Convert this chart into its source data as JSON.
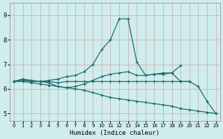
{
  "xlabel": "Humidex (Indice chaleur)",
  "background_color": "#d0ecec",
  "grid_color": "#b8d8d8",
  "line_color": "#1a6b6b",
  "xlim": [
    -0.5,
    23.5
  ],
  "ylim": [
    4.7,
    9.5
  ],
  "yticks": [
    5,
    6,
    7,
    8,
    9
  ],
  "xticks": [
    0,
    1,
    2,
    3,
    4,
    5,
    6,
    7,
    8,
    9,
    10,
    11,
    12,
    13,
    14,
    15,
    16,
    17,
    18,
    19,
    20,
    21,
    22,
    23
  ],
  "series": [
    {
      "x": [
        0,
        1,
        2,
        3,
        4,
        5,
        6,
        7,
        8,
        9,
        10,
        11,
        12,
        13,
        14,
        15,
        16,
        17,
        18,
        19,
        20
      ],
      "y": [
        6.3,
        6.4,
        6.3,
        6.3,
        6.3,
        6.25,
        6.3,
        6.3,
        6.3,
        6.3,
        6.3,
        6.3,
        6.3,
        6.3,
        6.3,
        6.3,
        6.3,
        6.3,
        6.3,
        6.3,
        6.3
      ]
    },
    {
      "x": [
        0,
        1,
        2,
        3,
        4,
        5,
        6,
        7,
        8,
        9,
        10,
        11,
        12,
        13,
        14,
        15,
        16,
        17,
        18,
        19
      ],
      "y": [
        6.3,
        6.4,
        6.35,
        6.3,
        6.35,
        6.4,
        6.5,
        6.55,
        6.7,
        7.0,
        7.6,
        8.0,
        8.85,
        8.85,
        7.1,
        6.55,
        6.6,
        6.65,
        6.65,
        6.95
      ]
    },
    {
      "x": [
        0,
        1,
        2,
        3,
        4,
        5,
        6,
        7,
        8,
        9,
        10,
        11,
        12,
        13,
        14,
        15,
        16,
        17,
        18,
        19,
        20,
        21,
        22,
        23
      ],
      "y": [
        6.3,
        6.35,
        6.3,
        6.3,
        6.25,
        6.1,
        6.05,
        6.1,
        6.2,
        6.35,
        6.5,
        6.6,
        6.65,
        6.7,
        6.55,
        6.55,
        6.6,
        6.6,
        6.65,
        6.3,
        6.3,
        6.1,
        5.5,
        5.0
      ]
    },
    {
      "x": [
        0,
        1,
        2,
        3,
        4,
        5,
        6,
        7,
        8,
        9,
        10,
        11,
        12,
        13,
        14,
        15,
        16,
        17,
        18,
        19,
        20,
        21,
        22,
        23
      ],
      "y": [
        6.3,
        6.3,
        6.25,
        6.2,
        6.15,
        6.1,
        6.05,
        6.0,
        5.95,
        5.85,
        5.75,
        5.65,
        5.6,
        5.55,
        5.5,
        5.45,
        5.4,
        5.35,
        5.3,
        5.2,
        5.15,
        5.1,
        5.05,
        5.0
      ]
    }
  ]
}
